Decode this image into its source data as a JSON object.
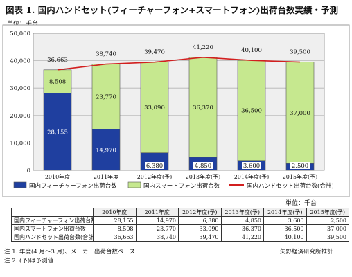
{
  "title": "図表 1. 国内ハンドセット(フィーチャーフォン+スマートフォン)出荷台数実績・予測",
  "unit_label": "単位：千台",
  "colors": {
    "feature": "#1f3f9f",
    "smart": "#c6e88f",
    "total_line": "#d21f1f",
    "plot_bg": "#efefef"
  },
  "chart_data": {
    "type": "bar",
    "stacked": true,
    "categories": [
      "2010年度",
      "2011年度",
      "2012年度(予)",
      "2013年度(予)",
      "2014年度(予)",
      "2015年度(予)"
    ],
    "series": [
      {
        "name": "国内フィーチャーフォン出荷台数",
        "values": [
          28155,
          14970,
          6380,
          4850,
          3600,
          2500
        ]
      },
      {
        "name": "国内スマートフォン出荷台数",
        "values": [
          8508,
          23770,
          33090,
          36370,
          36500,
          37000
        ]
      },
      {
        "name": "国内ハンドセット出荷台数(合計)",
        "type": "line",
        "values": [
          36663,
          38740,
          39470,
          41220,
          40100,
          39500
        ]
      }
    ],
    "ylim": [
      0,
      50000
    ],
    "yticks": [
      0,
      10000,
      20000,
      30000,
      40000,
      50000
    ],
    "ytick_labels": [
      "0",
      "10,000",
      "20,000",
      "30,000",
      "40,000",
      "50,000"
    ],
    "feature_labels": [
      "28,155",
      "14,970",
      "6,380",
      "4,850",
      "3,600",
      "2,500"
    ],
    "smart_labels": [
      "8,508",
      "23,770",
      "33,090",
      "36,370",
      "36,500",
      "37,000"
    ],
    "total_labels": [
      "36,663",
      "38,740",
      "39,470",
      "41,220",
      "40,100",
      "39,500"
    ],
    "grid": true,
    "legend_position": "bottom"
  },
  "table": {
    "unit": "単位：千台",
    "headers": [
      "2010年度",
      "2011年度",
      "2012年度(予)",
      "2013年度(予)",
      "2014年度(予)",
      "2015年度(予)"
    ],
    "rows": [
      {
        "label": "国内フィーチャーフォン出荷台数",
        "values": [
          "28,155",
          "14,970",
          "6,380",
          "4,850",
          "3,600",
          "2,500"
        ]
      },
      {
        "label": "国内スマートフォン出荷台数",
        "values": [
          "8,508",
          "23,770",
          "33,090",
          "36,370",
          "36,500",
          "37,000"
        ]
      },
      {
        "label": "国内ハンドセット出荷台数(合計)",
        "values": [
          "36,663",
          "38,740",
          "39,470",
          "41,220",
          "40,100",
          "39,500"
        ]
      }
    ]
  },
  "notes": [
    "注 1. 年度(4 月～3 月)、メーカー出荷台数ベース",
    "注 2. (予)は予測値"
  ],
  "source": "矢野経済研究所推計"
}
